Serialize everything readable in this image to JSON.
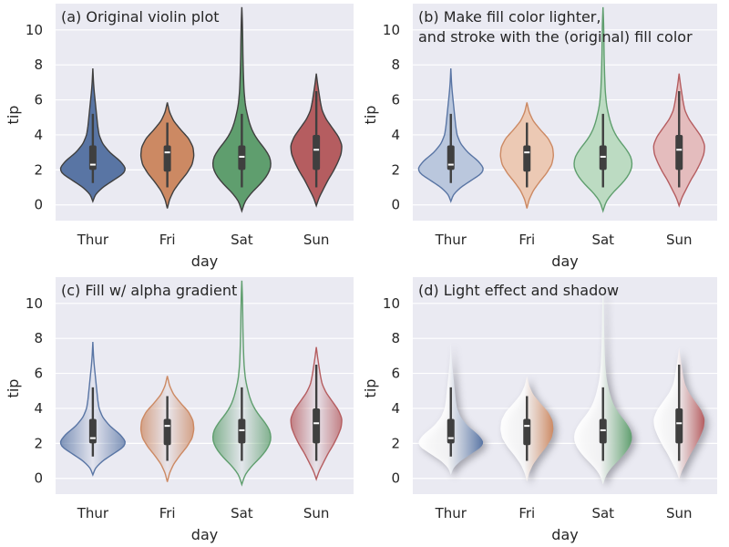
{
  "chart_data": [
    {
      "type": "violin",
      "title": "(a) Original violin plot",
      "style": "original",
      "xlabel": "day",
      "ylabel": "tip",
      "categories": [
        "Thur",
        "Fri",
        "Sat",
        "Sun"
      ],
      "ylim": [
        -0.9,
        11.5
      ],
      "yticks": [
        0,
        2,
        4,
        6,
        8,
        10
      ],
      "grid": true
    },
    {
      "type": "violin",
      "title": "(b) Make fill color lighter,\nand stroke with the (original) fill color",
      "style": "light",
      "xlabel": "day",
      "ylabel": "tip",
      "categories": [
        "Thur",
        "Fri",
        "Sat",
        "Sun"
      ],
      "ylim": [
        -0.9,
        11.5
      ],
      "yticks": [
        0,
        2,
        4,
        6,
        8,
        10
      ],
      "grid": true
    },
    {
      "type": "violin",
      "title": "(c) Fill w/ alpha gradient",
      "style": "gradient",
      "xlabel": "day",
      "ylabel": "tip",
      "categories": [
        "Thur",
        "Fri",
        "Sat",
        "Sun"
      ],
      "ylim": [
        -0.9,
        11.5
      ],
      "yticks": [
        0,
        2,
        4,
        6,
        8,
        10
      ],
      "grid": true
    },
    {
      "type": "violin",
      "title": "(d) Light effect and shadow",
      "style": "shadow",
      "xlabel": "day",
      "ylabel": "tip",
      "categories": [
        "Thur",
        "Fri",
        "Sat",
        "Sun"
      ],
      "ylim": [
        -0.9,
        11.5
      ],
      "yticks": [
        0,
        2,
        4,
        6,
        8,
        10
      ],
      "grid": true
    }
  ],
  "violins": [
    {
      "category": "Thur",
      "color": "#5975a4",
      "light_color": "#bac7dd",
      "box": {
        "whisker_low": 1.25,
        "q1": 2.0,
        "median": 2.3,
        "q3": 3.4,
        "whisker_high": 5.2
      },
      "profile": [
        [
          0.2,
          0.0
        ],
        [
          0.6,
          0.06
        ],
        [
          1.0,
          0.22
        ],
        [
          1.4,
          0.46
        ],
        [
          1.8,
          0.7
        ],
        [
          2.1,
          0.74
        ],
        [
          2.5,
          0.62
        ],
        [
          3.0,
          0.38
        ],
        [
          3.5,
          0.22
        ],
        [
          4.0,
          0.14
        ],
        [
          4.5,
          0.11
        ],
        [
          5.0,
          0.09
        ],
        [
          5.5,
          0.07
        ],
        [
          6.0,
          0.05
        ],
        [
          6.5,
          0.03
        ],
        [
          7.0,
          0.015
        ],
        [
          7.8,
          0.0
        ]
      ]
    },
    {
      "category": "Fri",
      "color": "#cc8963",
      "light_color": "#ecc9b4",
      "box": {
        "whisker_low": 1.0,
        "q1": 1.9,
        "median": 3.0,
        "q3": 3.4,
        "whisker_high": 4.7
      },
      "profile": [
        [
          -0.2,
          0.0
        ],
        [
          0.3,
          0.05
        ],
        [
          0.8,
          0.14
        ],
        [
          1.3,
          0.28
        ],
        [
          1.8,
          0.44
        ],
        [
          2.3,
          0.56
        ],
        [
          2.8,
          0.6
        ],
        [
          3.3,
          0.58
        ],
        [
          3.8,
          0.48
        ],
        [
          4.3,
          0.3
        ],
        [
          4.8,
          0.14
        ],
        [
          5.3,
          0.05
        ],
        [
          5.85,
          0.0
        ]
      ]
    },
    {
      "category": "Sat",
      "color": "#5f9e6e",
      "light_color": "#bcdbc2",
      "box": {
        "whisker_low": 1.0,
        "q1": 2.0,
        "median": 2.75,
        "q3": 3.4,
        "whisker_high": 5.2
      },
      "profile": [
        [
          -0.35,
          0.0
        ],
        [
          0.2,
          0.07
        ],
        [
          0.7,
          0.22
        ],
        [
          1.2,
          0.42
        ],
        [
          1.7,
          0.58
        ],
        [
          2.2,
          0.66
        ],
        [
          2.7,
          0.64
        ],
        [
          3.2,
          0.52
        ],
        [
          3.7,
          0.36
        ],
        [
          4.2,
          0.24
        ],
        [
          4.7,
          0.17
        ],
        [
          5.2,
          0.12
        ],
        [
          5.7,
          0.08
        ],
        [
          6.5,
          0.05
        ],
        [
          7.5,
          0.035
        ],
        [
          8.5,
          0.025
        ],
        [
          9.5,
          0.02
        ],
        [
          10.5,
          0.012
        ],
        [
          11.3,
          0.0
        ]
      ]
    },
    {
      "category": "Sun",
      "color": "#b55d60",
      "light_color": "#e4bcbd",
      "box": {
        "whisker_low": 1.0,
        "q1": 2.0,
        "median": 3.15,
        "q3": 4.0,
        "whisker_high": 6.5
      },
      "profile": [
        [
          -0.05,
          0.0
        ],
        [
          0.4,
          0.06
        ],
        [
          0.9,
          0.16
        ],
        [
          1.4,
          0.26
        ],
        [
          1.9,
          0.38
        ],
        [
          2.4,
          0.48
        ],
        [
          2.9,
          0.56
        ],
        [
          3.4,
          0.58
        ],
        [
          3.9,
          0.5
        ],
        [
          4.4,
          0.36
        ],
        [
          4.9,
          0.22
        ],
        [
          5.4,
          0.13
        ],
        [
          5.9,
          0.09
        ],
        [
          6.4,
          0.06
        ],
        [
          6.9,
          0.03
        ],
        [
          7.5,
          0.0
        ]
      ]
    }
  ]
}
